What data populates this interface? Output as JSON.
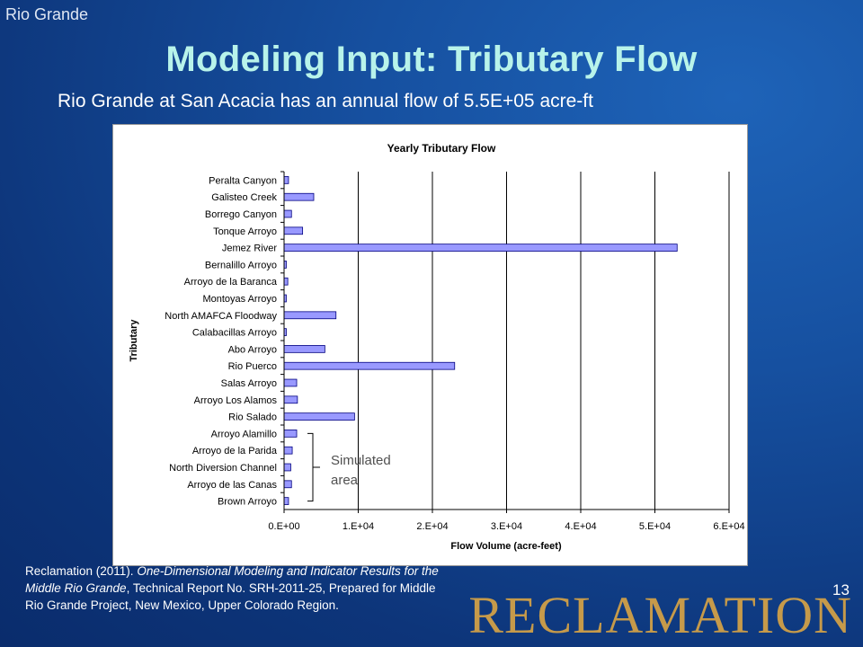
{
  "slide": {
    "corner_label": "Rio Grande",
    "title": "Modeling Input: Tributary Flow",
    "subtitle": "Rio Grande at San Acacia has an annual flow of 5.5E+05 acre-ft",
    "citation": {
      "prefix": "Reclamation (2011). ",
      "italic": "One-Dimensional Modeling and Indicator Results for the Middle Rio Grande",
      "suffix": ", Technical Report No. SRH-2011-25, Prepared for Middle Rio Grande Project, New Mexico, Upper Colorado Region."
    },
    "page_number": "13",
    "wordmark": "RECLAMATION",
    "colors": {
      "title": "#b8f3ea",
      "bar_fill": "#9999ff",
      "bar_stroke": "#000080",
      "wordmark": "#c69a4a"
    }
  },
  "chart_data": {
    "type": "bar",
    "orientation": "horizontal",
    "title": "Yearly Tributary Flow",
    "xlabel": "Flow Volume (acre-feet)",
    "ylabel": "Tributary",
    "xlim": [
      0,
      60000
    ],
    "xticks": [
      0,
      10000,
      20000,
      30000,
      40000,
      50000,
      60000
    ],
    "xtick_labels": [
      "0.E+00",
      "1.E+04",
      "2.E+04",
      "3.E+04",
      "4.E+04",
      "5.E+04",
      "6.E+04"
    ],
    "grid": "vertical",
    "categories": [
      "Peralta Canyon",
      "Galisteo Creek",
      "Borrego Canyon",
      "Tonque Arroyo",
      "Jemez River",
      "Bernalillo Arroyo",
      "Arroyo de la Baranca",
      "Montoyas Arroyo",
      "North AMAFCA Floodway",
      "Calabacillas Arroyo",
      "Abo Arroyo",
      "Rio Puerco",
      "Salas Arroyo",
      "Arroyo Los Alamos",
      "Rio Salado",
      "Arroyo Alamillo",
      "Arroyo de la Parida",
      "North Diversion Channel",
      "Arroyo de las Canas",
      "Brown Arroyo"
    ],
    "values": [
      600,
      4000,
      1000,
      2500,
      53000,
      300,
      500,
      300,
      7000,
      300,
      5500,
      23000,
      1700,
      1800,
      9500,
      1700,
      1100,
      900,
      1000,
      600
    ],
    "annotation": {
      "text_line1": "Simulated",
      "text_line2": "area",
      "bracket_from": "Arroyo Alamillo",
      "bracket_to": "Brown Arroyo"
    }
  }
}
